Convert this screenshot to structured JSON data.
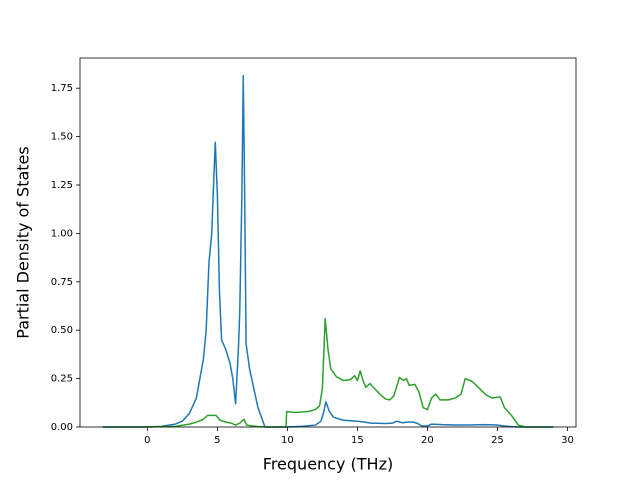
{
  "chart_data": {
    "type": "line",
    "x_label": "Frequency (THz)",
    "y_label": "Partial Density of States",
    "xlim": [
      -4.81,
      30.61
    ],
    "ylim": [
      0,
      1.906
    ],
    "xticks": [
      0,
      5,
      10,
      15,
      20,
      25,
      30
    ],
    "yticks": [
      {
        "value": 0,
        "label": "0.00"
      },
      {
        "value": 0.25,
        "label": "0.25"
      },
      {
        "value": 0.5,
        "label": "0.50"
      },
      {
        "value": 0.75,
        "label": "0.75"
      },
      {
        "value": 1,
        "label": "1.00"
      },
      {
        "value": 1.25,
        "label": "1.25"
      },
      {
        "value": 1.5,
        "label": "1.50"
      },
      {
        "value": 1.75,
        "label": "1.75"
      }
    ],
    "series": [
      {
        "color": "#1f77b4",
        "x": [
          -3.2,
          0,
          1,
          2,
          2.5,
          3,
          3.5,
          4,
          4.2,
          4.4,
          4.6,
          4.7,
          4.85,
          5.0,
          5.15,
          5.3,
          5.6,
          5.9,
          6.1,
          6.3,
          6.5,
          6.6,
          6.75,
          6.85,
          6.95,
          7.05,
          7.3,
          7.6,
          7.9,
          8.2,
          8.4,
          9.5,
          10,
          11,
          12,
          12.4,
          12.6,
          12.75,
          13,
          13.3,
          14,
          15,
          15.5,
          16,
          17,
          17.5,
          17.8,
          18.2,
          18.6,
          19,
          19.3,
          19.6,
          20,
          20.3,
          21,
          22,
          23,
          24,
          25,
          25.5,
          26,
          26.5,
          29
        ],
        "values": [
          0,
          0,
          0.003,
          0.015,
          0.03,
          0.07,
          0.15,
          0.35,
          0.5,
          0.85,
          1.0,
          1.2,
          1.47,
          1.2,
          0.7,
          0.45,
          0.4,
          0.33,
          0.25,
          0.12,
          0.4,
          0.6,
          1.2,
          1.815,
          1.2,
          0.43,
          0.3,
          0.2,
          0.1,
          0.04,
          0,
          0,
          0,
          0.003,
          0.01,
          0.03,
          0.08,
          0.13,
          0.08,
          0.05,
          0.035,
          0.03,
          0.025,
          0.02,
          0.018,
          0.02,
          0.03,
          0.022,
          0.025,
          0.025,
          0.018,
          0.005,
          0.005,
          0.015,
          0.012,
          0.01,
          0.01,
          0.012,
          0.01,
          0.005,
          0.002,
          0,
          0
        ]
      },
      {
        "color": "#2ca02c",
        "x": [
          -3.2,
          0,
          2,
          3,
          3.5,
          4,
          4.3,
          4.9,
          5.2,
          5.6,
          6,
          6.3,
          6.6,
          6.9,
          7.1,
          7.5,
          8,
          8.5,
          9.9,
          9.95,
          10.5,
          11.5,
          12,
          12.3,
          12.5,
          12.7,
          12.9,
          13.1,
          13.5,
          14,
          14.5,
          14.8,
          15,
          15.2,
          15.4,
          15.6,
          15.9,
          16.2,
          16.6,
          17,
          17.3,
          17.6,
          18,
          18.3,
          18.5,
          18.7,
          19.1,
          19.4,
          19.7,
          20,
          20.3,
          20.6,
          20.9,
          21.5,
          22,
          22.4,
          22.7,
          23.2,
          23.7,
          24.2,
          24.6,
          25.2,
          25.5,
          26,
          26.5,
          27,
          29
        ],
        "values": [
          0,
          0,
          0.003,
          0.015,
          0.025,
          0.04,
          0.06,
          0.06,
          0.035,
          0.025,
          0.02,
          0.01,
          0.02,
          0.04,
          0.01,
          0.005,
          0.002,
          0,
          0,
          0.08,
          0.075,
          0.08,
          0.09,
          0.11,
          0.2,
          0.56,
          0.4,
          0.3,
          0.26,
          0.24,
          0.245,
          0.265,
          0.24,
          0.29,
          0.24,
          0.205,
          0.225,
          0.2,
          0.17,
          0.145,
          0.14,
          0.16,
          0.255,
          0.24,
          0.25,
          0.215,
          0.22,
          0.18,
          0.1,
          0.09,
          0.15,
          0.17,
          0.14,
          0.14,
          0.15,
          0.17,
          0.25,
          0.235,
          0.2,
          0.165,
          0.15,
          0.155,
          0.1,
          0.06,
          0.01,
          0,
          0
        ]
      }
    ]
  }
}
